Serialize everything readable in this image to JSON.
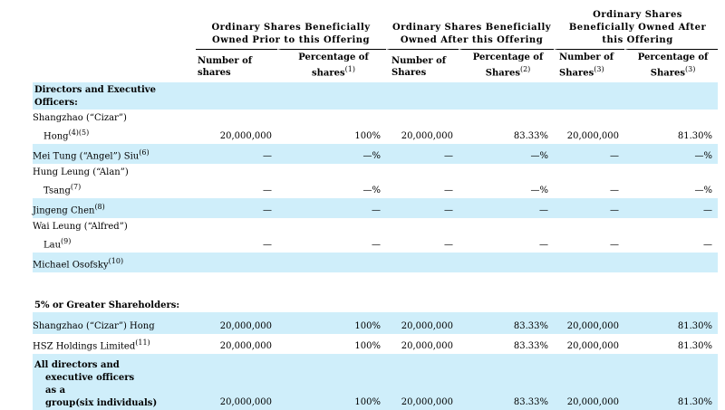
{
  "headers": {
    "group1": "Ordinary Shares Beneficially Owned Prior to this Offering",
    "group2": "Ordinary Shares Beneficially Owned After this Offering",
    "group3": "Ordinary Shares Beneficially Owned After this Offering",
    "g1_col1": "Number of shares",
    "g1_col2": "Percentage of shares",
    "g1_col2_note": "(1)",
    "g2_col1": "Number of Shares",
    "g2_col2": "Percentage of Shares",
    "g2_col2_note": "(2)",
    "g3_col1": "Number of Shares",
    "g3_col1_note": "(3)",
    "g3_col2": "Percentage of Shares",
    "g3_col2_note": "(3)"
  },
  "sections": {
    "directors": "Directors and Executive Officers:",
    "greater": "5% or Greater Shareholders:"
  },
  "rows": {
    "shang": {
      "name_l1": "Shangzhao (“Cizar”)",
      "name_l2": "Hong",
      "note": "(4)(5)",
      "v1": "20,000,000",
      "v2": "100%",
      "v3": "20,000,000",
      "v4": "83.33%",
      "v5": "20,000,000",
      "v6": "81.30%"
    },
    "hei": {
      "name_l1": "Mei Tung (“Angel”) Siu",
      "note": "(6)",
      "v1": "—",
      "v2": "—%",
      "v3": "—",
      "v4": "—%",
      "v5": "—",
      "v6": "—%"
    },
    "hung": {
      "name_l1": "Hung Leung (“Alan”)",
      "name_l2": "Tsang",
      "note": "(7)",
      "v1": "—",
      "v2": "—%",
      "v3": "—",
      "v4": "—%",
      "v5": "—",
      "v6": "—%"
    },
    "jing": {
      "name_l1": "Jingeng Chen",
      "note": "(8)",
      "v1": "—",
      "v2": "—",
      "v3": "—",
      "v4": "—",
      "v5": "—",
      "v6": "—"
    },
    "wai": {
      "name_l1": "Wai Leung (“Alfred”)",
      "name_l2": "Lau",
      "note": "(9)",
      "v1": "—",
      "v2": "—",
      "v3": "—",
      "v4": "—",
      "v5": "—",
      "v6": "—"
    },
    "mich": {
      "name_l1": "Michael Osofsky",
      "note": "(10)"
    },
    "sh2": {
      "name_l1": "Shangzhao (“Cizar”) Hong",
      "v1": "20,000,000",
      "v2": "100%",
      "v3": "20,000,000",
      "v4": "83.33%",
      "v5": "20,000,000",
      "v6": "81.30%"
    },
    "hsz": {
      "name_l1": "HSZ Holdings Limited",
      "note": "(11)",
      "v1": "20,000,000",
      "v2": "100%",
      "v3": "20,000,000",
      "v4": "83.33%",
      "v5": "20,000,000",
      "v6": "81.30%"
    },
    "all": {
      "name_l1": "All directors and",
      "name_l2": "executive officers",
      "name_l3": "as a",
      "name_l4": "group(six individuals)",
      "v1": "20,000,000",
      "v2": "100%",
      "v3": "20,000,000",
      "v4": "83.33%",
      "v5": "20,000,000",
      "v6": "81.30%"
    }
  }
}
